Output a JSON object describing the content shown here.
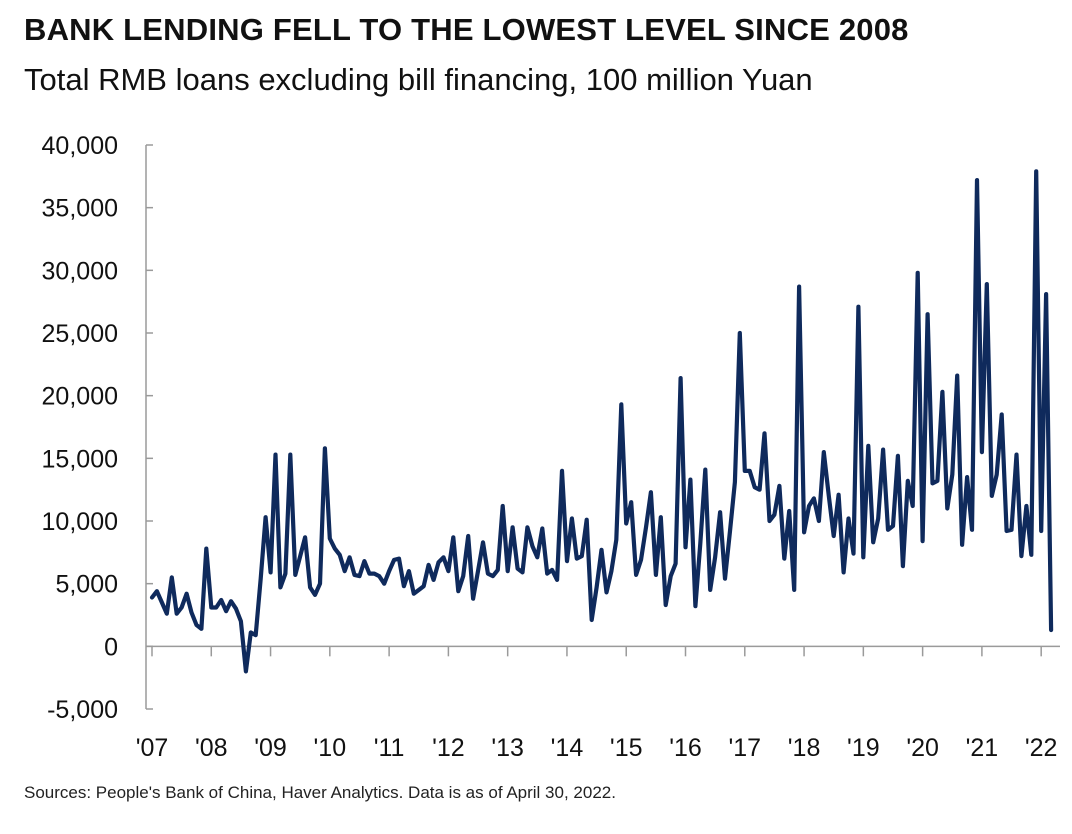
{
  "header": {
    "title": "BANK LENDING FELL TO THE LOWEST LEVEL SINCE 2008",
    "subtitle": "Total RMB loans excluding bill financing, 100 million Yuan"
  },
  "footer": {
    "source": "Sources: People's Bank of China, Haver Analytics. Data is as of April 30, 2022."
  },
  "colors": {
    "line": "#0f2a5c",
    "axis": "#9a9a9a"
  },
  "chart_data": {
    "type": "line",
    "title": "BANK LENDING FELL TO THE LOWEST LEVEL SINCE 2008",
    "subtitle": "Total RMB loans excluding bill financing, 100 million Yuan",
    "xlabel": "",
    "ylabel": "",
    "ylim": [
      -5000,
      40000
    ],
    "yticks": [
      -5000,
      0,
      5000,
      10000,
      15000,
      20000,
      25000,
      30000,
      35000,
      40000
    ],
    "ytick_labels": [
      "-5,000",
      "0",
      "5,000",
      "10,000",
      "15,000",
      "20,000",
      "25,000",
      "30,000",
      "35,000",
      "40,000"
    ],
    "xticks": [
      2007,
      2008,
      2009,
      2010,
      2011,
      2012,
      2013,
      2014,
      2015,
      2016,
      2017,
      2018,
      2019,
      2020,
      2021,
      2022
    ],
    "xtick_labels": [
      "'07",
      "'08",
      "'09",
      "'10",
      "'11",
      "'12",
      "'13",
      "'14",
      "'15",
      "'16",
      "'17",
      "'18",
      "'19",
      "'20",
      "'21",
      "'22"
    ],
    "x_start": "2007-01",
    "x_end": "2022-04",
    "grid": false,
    "series": [
      {
        "values": [
          3900,
          4400,
          3500,
          2600,
          5500,
          2600,
          3100,
          4200,
          2700,
          1700,
          1400,
          7800,
          3100,
          3100,
          3700,
          2800,
          3600,
          3000,
          2000,
          -2000,
          1100,
          900,
          5400,
          10300,
          5900,
          15300,
          4700,
          5800,
          15300,
          5700,
          7200,
          8700,
          4700,
          4100,
          5000,
          15800,
          8600,
          7800,
          7300,
          6000,
          7100,
          5700,
          5600,
          6800,
          5800,
          5800,
          5600,
          5000,
          6000,
          6900,
          7000,
          4800,
          6000,
          4200,
          4500,
          4800,
          6500,
          5300,
          6700,
          7100,
          6000,
          8700,
          4400,
          5600,
          8800,
          3800,
          6000,
          8300,
          5800,
          5600,
          6100,
          11200,
          6000,
          9500,
          6200,
          5900,
          9500,
          8000,
          7100,
          9400,
          5800,
          6100,
          5300,
          14000,
          6800,
          10200,
          7000,
          7200,
          10100,
          2100,
          4700,
          7700,
          4300,
          6000,
          8500,
          19300,
          9800,
          11500,
          5700,
          6900,
          9500,
          12300,
          5700,
          10300,
          3300,
          5600,
          6600,
          21400,
          7900,
          13300,
          3200,
          8200,
          14100,
          4500,
          7100,
          10700,
          5400,
          9200,
          13100,
          25000,
          14000,
          14000,
          12700,
          12500,
          17000,
          10000,
          10500,
          12800,
          7000,
          10800,
          4500,
          28700,
          9100,
          11200,
          11800,
          10000,
          15500,
          12000,
          8800,
          12100,
          5900,
          10200,
          7400,
          27100,
          7100,
          16000,
          8300,
          10200,
          15700,
          9300,
          9600,
          15200,
          6400,
          13200,
          11200,
          29800,
          8400,
          26500,
          13000,
          13200,
          20300,
          11000,
          13700,
          21600,
          8100,
          13500,
          9300,
          37200,
          15500,
          28900,
          12000,
          13700,
          18500,
          9200,
          9300,
          15300,
          7200,
          11200,
          7300,
          37900,
          9200,
          28100,
          1300
        ]
      }
    ]
  }
}
